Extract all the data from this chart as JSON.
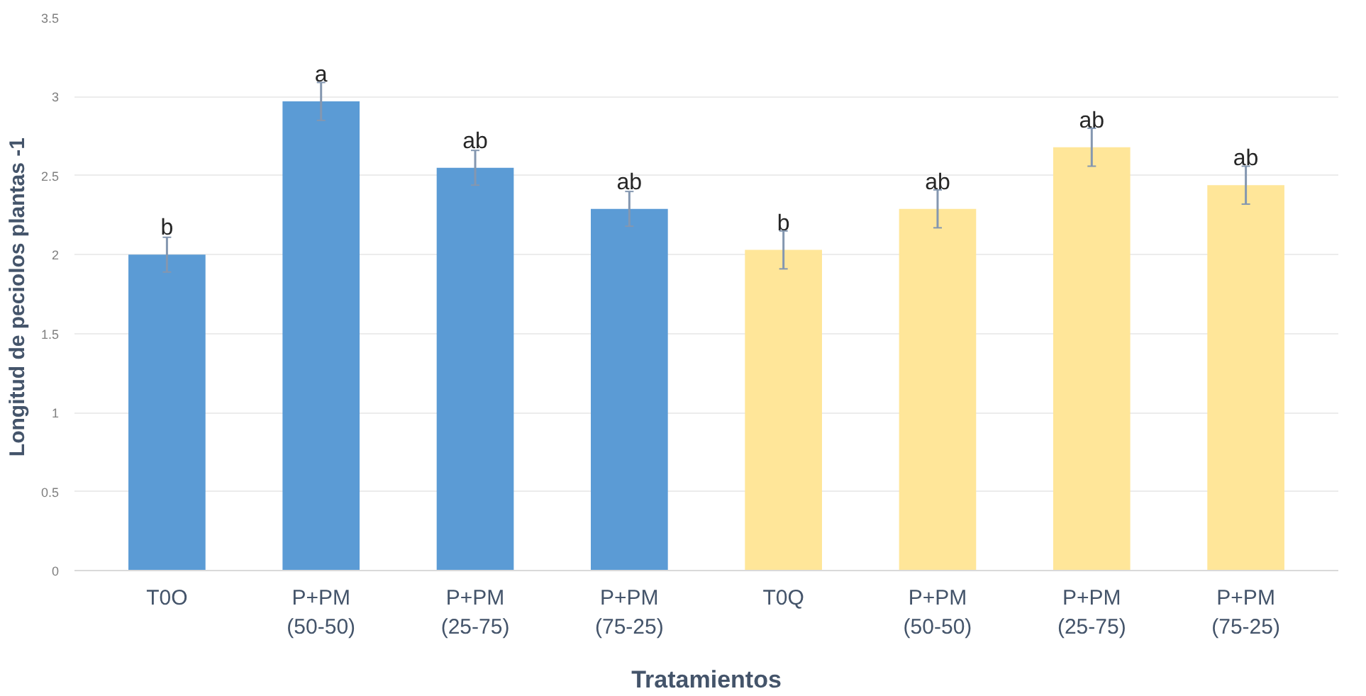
{
  "chart_data": {
    "type": "bar",
    "xlabel": "Tratamientos",
    "ylabel": "Longitud de peciolos plantas  -1",
    "categories": [
      "T0O",
      "P+PM (50-50)",
      "P+PM (25-75)",
      "P+PM (75-25)",
      "T0Q",
      "P+PM (50-50)",
      "P+PM (25-75)",
      "P+PM (75-25)"
    ],
    "values": [
      2.0,
      2.97,
      2.55,
      2.29,
      2.03,
      2.29,
      2.68,
      2.44
    ],
    "errors": [
      0.11,
      0.12,
      0.11,
      0.11,
      0.12,
      0.12,
      0.12,
      0.12
    ],
    "value_labels": [
      "b",
      "a",
      "ab",
      "ab",
      "b",
      "ab",
      "ab",
      "ab"
    ],
    "colors": [
      "#5b9bd5",
      "#5b9bd5",
      "#5b9bd5",
      "#5b9bd5",
      "#ffe699",
      "#ffe699",
      "#ffe699",
      "#ffe699"
    ],
    "ylim": [
      0,
      3.5
    ],
    "yticks": [
      0,
      0.5,
      1,
      1.5,
      2,
      2.5,
      3,
      3.5
    ],
    "grid": "y"
  }
}
